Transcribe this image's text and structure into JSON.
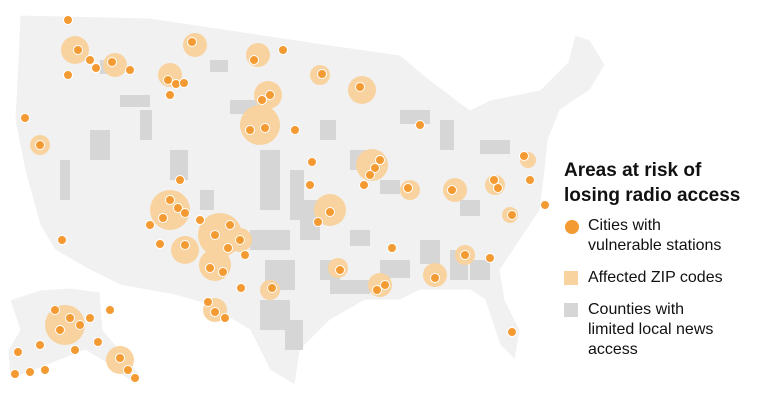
{
  "legend": {
    "title": "Areas at risk of losing radio access",
    "items": [
      {
        "label": "Cities with vulnerable stations"
      },
      {
        "label": "Affected ZIP codes"
      },
      {
        "label": "Counties with limited local news access"
      }
    ]
  }
}
